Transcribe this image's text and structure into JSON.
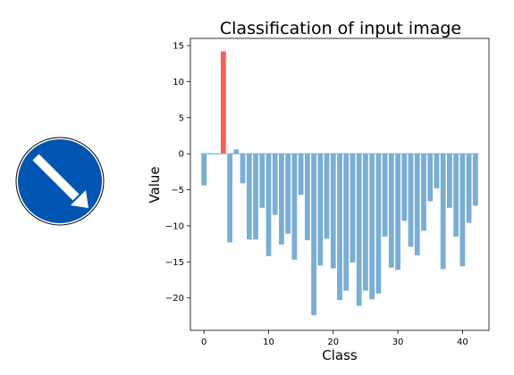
{
  "image": {
    "icon": "keep-right-arrow-sign-icon",
    "colors": {
      "disc": "#0055b0",
      "arrow": "#ffffff"
    }
  },
  "chart_data": {
    "type": "bar",
    "title": "Classification of input image",
    "xlabel": "Class",
    "ylabel": "Value",
    "xlim": [
      -2.1,
      44.1
    ],
    "ylim": [
      -24.5,
      16
    ],
    "xticks": [
      0,
      10,
      20,
      30,
      40
    ],
    "yticks": [
      -20,
      -15,
      -10,
      -5,
      0,
      5,
      10,
      15
    ],
    "grid": false,
    "bar_color": "#7aaed4",
    "highlight_color": "#ff5c5c",
    "highlight_index": 3,
    "categories": [
      0,
      1,
      2,
      3,
      4,
      5,
      6,
      7,
      8,
      9,
      10,
      11,
      12,
      13,
      14,
      15,
      16,
      17,
      18,
      19,
      20,
      21,
      22,
      23,
      24,
      25,
      26,
      27,
      28,
      29,
      30,
      31,
      32,
      33,
      34,
      35,
      36,
      37,
      38,
      39,
      40,
      41,
      42
    ],
    "values": [
      -4.4,
      -0.1,
      0.0,
      14.2,
      -12.3,
      0.6,
      -4.1,
      -11.9,
      -11.9,
      -7.5,
      -14.2,
      -8.5,
      -12.6,
      -11.1,
      -14.7,
      -5.7,
      -12.0,
      -22.4,
      -15.5,
      -11.8,
      -15.9,
      -20.3,
      -19.0,
      -15.1,
      -21.1,
      -19.0,
      -20.2,
      -19.4,
      -11.5,
      -15.8,
      -16.1,
      -9.3,
      -12.9,
      -14.1,
      -10.7,
      -6.6,
      -4.8,
      -16.0,
      -7.5,
      -11.5,
      -15.6,
      -9.6,
      -7.2
    ]
  }
}
